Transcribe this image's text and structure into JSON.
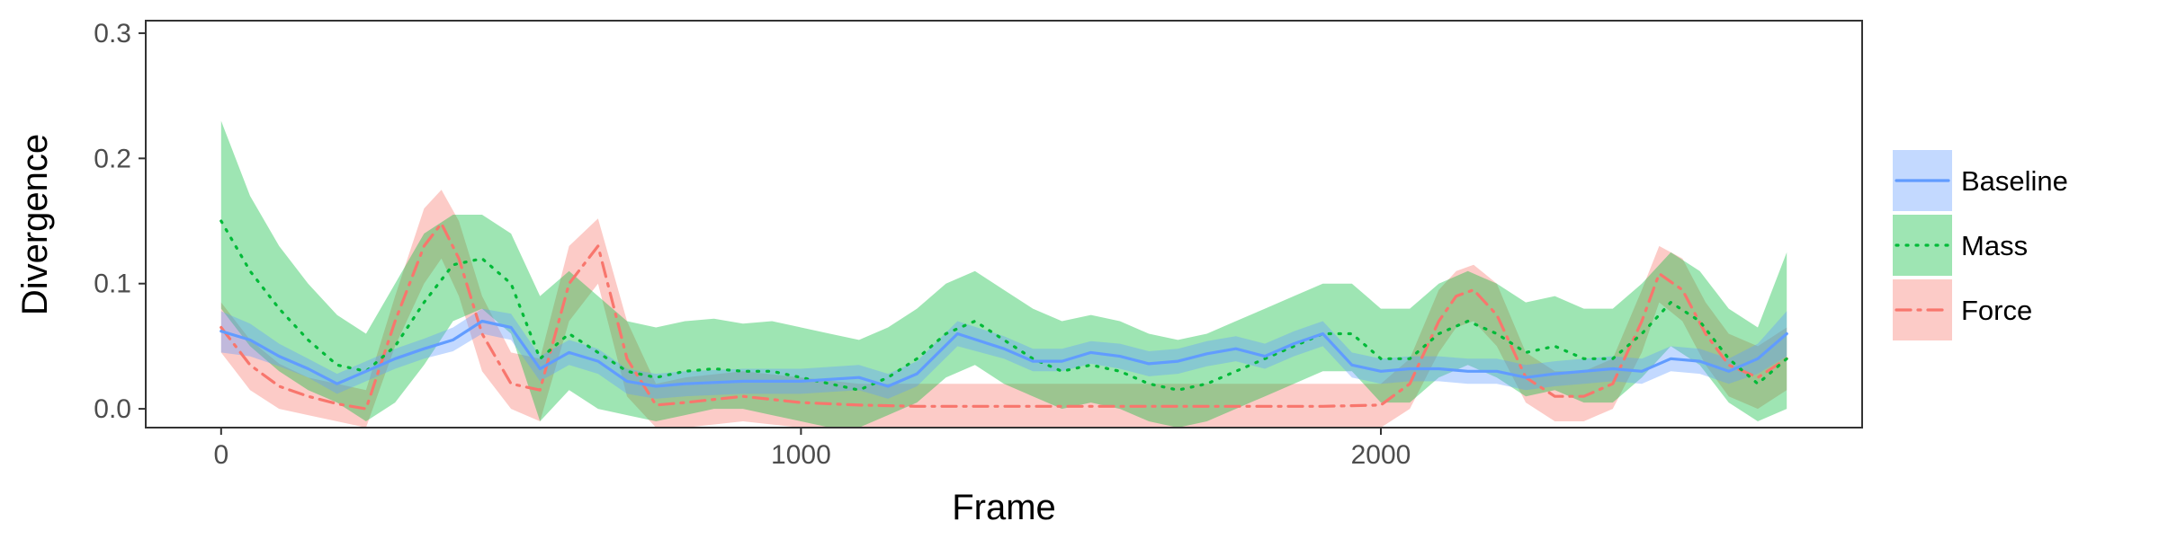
{
  "chart_data": {
    "type": "line",
    "title": "",
    "xlabel": "Frame",
    "ylabel": "Divergence",
    "xlim": [
      -130,
      2830
    ],
    "ylim": [
      -0.015,
      0.31
    ],
    "xticks": [
      0,
      1000,
      2000
    ],
    "xtick_labels": [
      "0",
      "1000",
      "2000"
    ],
    "yticks": [
      0.0,
      0.1,
      0.2,
      0.3
    ],
    "ytick_labels": [
      "0.0",
      "0.1",
      "0.2",
      "0.3"
    ],
    "grid": false,
    "legend_position": "right",
    "series": [
      {
        "name": "Baseline",
        "color": "#619CFF",
        "line_style": "solid",
        "x": [
          0,
          50,
          100,
          150,
          200,
          250,
          300,
          350,
          400,
          450,
          500,
          550,
          600,
          650,
          700,
          750,
          800,
          900,
          1000,
          1100,
          1150,
          1200,
          1270,
          1350,
          1400,
          1450,
          1500,
          1550,
          1600,
          1650,
          1700,
          1750,
          1800,
          1850,
          1900,
          1950,
          2000,
          2050,
          2100,
          2150,
          2200,
          2250,
          2300,
          2350,
          2400,
          2450,
          2500,
          2550,
          2600,
          2650,
          2700
        ],
        "y": [
          0.062,
          0.055,
          0.042,
          0.032,
          0.02,
          0.03,
          0.04,
          0.048,
          0.055,
          0.07,
          0.065,
          0.032,
          0.045,
          0.038,
          0.022,
          0.018,
          0.02,
          0.022,
          0.022,
          0.025,
          0.018,
          0.028,
          0.06,
          0.048,
          0.038,
          0.038,
          0.045,
          0.042,
          0.036,
          0.038,
          0.044,
          0.048,
          0.042,
          0.052,
          0.06,
          0.035,
          0.03,
          0.032,
          0.032,
          0.03,
          0.03,
          0.025,
          0.028,
          0.03,
          0.032,
          0.03,
          0.04,
          0.038,
          0.03,
          0.04,
          0.06
        ],
        "lower": [
          0.045,
          0.042,
          0.034,
          0.025,
          0.012,
          0.022,
          0.032,
          0.04,
          0.046,
          0.06,
          0.055,
          0.022,
          0.035,
          0.028,
          0.012,
          0.008,
          0.01,
          0.012,
          0.012,
          0.015,
          0.008,
          0.018,
          0.05,
          0.04,
          0.03,
          0.03,
          0.036,
          0.032,
          0.026,
          0.028,
          0.034,
          0.038,
          0.032,
          0.042,
          0.05,
          0.025,
          0.02,
          0.022,
          0.022,
          0.02,
          0.02,
          0.015,
          0.018,
          0.02,
          0.022,
          0.02,
          0.03,
          0.028,
          0.02,
          0.028,
          0.042
        ],
        "upper": [
          0.078,
          0.068,
          0.052,
          0.04,
          0.028,
          0.038,
          0.048,
          0.056,
          0.065,
          0.08,
          0.076,
          0.042,
          0.055,
          0.048,
          0.032,
          0.028,
          0.03,
          0.032,
          0.032,
          0.035,
          0.028,
          0.038,
          0.07,
          0.058,
          0.048,
          0.048,
          0.054,
          0.052,
          0.046,
          0.048,
          0.054,
          0.058,
          0.052,
          0.062,
          0.07,
          0.045,
          0.04,
          0.042,
          0.042,
          0.04,
          0.04,
          0.035,
          0.038,
          0.04,
          0.042,
          0.04,
          0.05,
          0.048,
          0.04,
          0.052,
          0.078
        ]
      },
      {
        "name": "Mass",
        "color": "#00BA38",
        "line_style": "dotted",
        "x": [
          0,
          50,
          100,
          150,
          200,
          250,
          300,
          350,
          400,
          450,
          500,
          550,
          600,
          650,
          700,
          750,
          800,
          850,
          900,
          950,
          1000,
          1050,
          1100,
          1150,
          1200,
          1250,
          1300,
          1350,
          1400,
          1450,
          1500,
          1550,
          1600,
          1650,
          1700,
          1750,
          1800,
          1850,
          1900,
          1950,
          2000,
          2050,
          2100,
          2150,
          2200,
          2250,
          2300,
          2350,
          2400,
          2450,
          2500,
          2550,
          2600,
          2650,
          2700
        ],
        "y": [
          0.15,
          0.11,
          0.08,
          0.055,
          0.035,
          0.03,
          0.05,
          0.085,
          0.115,
          0.12,
          0.1,
          0.04,
          0.06,
          0.045,
          0.03,
          0.025,
          0.03,
          0.032,
          0.03,
          0.03,
          0.025,
          0.02,
          0.015,
          0.025,
          0.04,
          0.06,
          0.07,
          0.055,
          0.04,
          0.03,
          0.035,
          0.03,
          0.02,
          0.015,
          0.02,
          0.03,
          0.04,
          0.05,
          0.06,
          0.06,
          0.04,
          0.04,
          0.06,
          0.07,
          0.06,
          0.045,
          0.05,
          0.04,
          0.04,
          0.06,
          0.085,
          0.07,
          0.04,
          0.02,
          0.04
        ],
        "lower": [
          0.08,
          0.05,
          0.03,
          0.015,
          0.005,
          -0.01,
          0.005,
          0.035,
          0.07,
          0.08,
          0.06,
          -0.01,
          0.015,
          0.0,
          -0.005,
          -0.01,
          -0.005,
          0.0,
          0.0,
          -0.005,
          -0.01,
          -0.015,
          -0.015,
          -0.005,
          0.005,
          0.025,
          0.035,
          0.02,
          0.01,
          0.0,
          0.005,
          0.0,
          -0.01,
          -0.015,
          -0.01,
          0.0,
          0.01,
          0.02,
          0.03,
          0.03,
          0.005,
          0.005,
          0.025,
          0.035,
          0.025,
          0.01,
          0.015,
          0.005,
          0.005,
          0.025,
          0.05,
          0.035,
          0.005,
          -0.01,
          0.0
        ],
        "upper": [
          0.23,
          0.17,
          0.13,
          0.1,
          0.075,
          0.06,
          0.1,
          0.14,
          0.155,
          0.155,
          0.14,
          0.09,
          0.11,
          0.09,
          0.07,
          0.065,
          0.07,
          0.072,
          0.068,
          0.07,
          0.065,
          0.06,
          0.055,
          0.065,
          0.08,
          0.1,
          0.11,
          0.095,
          0.08,
          0.07,
          0.075,
          0.07,
          0.06,
          0.055,
          0.06,
          0.07,
          0.08,
          0.09,
          0.1,
          0.1,
          0.08,
          0.08,
          0.1,
          0.11,
          0.1,
          0.085,
          0.09,
          0.08,
          0.08,
          0.1,
          0.125,
          0.11,
          0.08,
          0.065,
          0.125
        ]
      },
      {
        "name": "Force",
        "color": "#F8766D",
        "line_style": "dashdot",
        "x": [
          0,
          50,
          100,
          150,
          200,
          250,
          300,
          350,
          380,
          410,
          450,
          500,
          550,
          600,
          650,
          700,
          750,
          800,
          900,
          1000,
          1100,
          1200,
          1300,
          1400,
          1500,
          1600,
          1700,
          1800,
          1900,
          2000,
          2050,
          2100,
          2130,
          2160,
          2200,
          2250,
          2300,
          2350,
          2400,
          2450,
          2480,
          2520,
          2560,
          2600,
          2650,
          2700
        ],
        "y": [
          0.065,
          0.035,
          0.018,
          0.01,
          0.004,
          0.0,
          0.07,
          0.13,
          0.148,
          0.12,
          0.06,
          0.02,
          0.015,
          0.1,
          0.13,
          0.04,
          0.003,
          0.005,
          0.01,
          0.005,
          0.003,
          0.002,
          0.002,
          0.002,
          0.002,
          0.002,
          0.002,
          0.002,
          0.002,
          0.003,
          0.02,
          0.07,
          0.09,
          0.095,
          0.075,
          0.025,
          0.01,
          0.01,
          0.02,
          0.07,
          0.108,
          0.095,
          0.06,
          0.035,
          0.025,
          0.04
        ],
        "lower": [
          0.045,
          0.015,
          0.0,
          -0.005,
          -0.01,
          -0.015,
          0.05,
          0.1,
          0.12,
          0.09,
          0.03,
          0.0,
          -0.01,
          0.07,
          0.1,
          0.01,
          -0.015,
          -0.015,
          -0.01,
          -0.015,
          -0.015,
          -0.015,
          -0.015,
          -0.015,
          -0.015,
          -0.015,
          -0.015,
          -0.015,
          -0.015,
          -0.015,
          0.0,
          0.045,
          0.065,
          0.07,
          0.05,
          0.005,
          -0.01,
          -0.01,
          0.0,
          0.045,
          0.085,
          0.07,
          0.035,
          0.01,
          0.0,
          0.015
        ],
        "upper": [
          0.085,
          0.055,
          0.036,
          0.025,
          0.02,
          0.015,
          0.09,
          0.16,
          0.175,
          0.15,
          0.09,
          0.045,
          0.04,
          0.13,
          0.152,
          0.07,
          0.02,
          0.025,
          0.03,
          0.025,
          0.02,
          0.02,
          0.02,
          0.02,
          0.02,
          0.02,
          0.02,
          0.02,
          0.02,
          0.02,
          0.04,
          0.095,
          0.11,
          0.115,
          0.1,
          0.045,
          0.03,
          0.03,
          0.04,
          0.095,
          0.13,
          0.12,
          0.085,
          0.06,
          0.05,
          0.065
        ]
      }
    ]
  }
}
